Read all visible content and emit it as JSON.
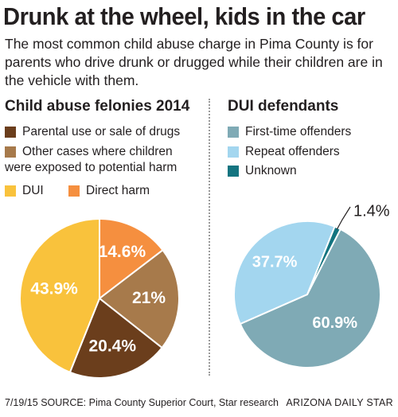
{
  "headline": "Drunk at the wheel, kids in the car",
  "subhead": "The most common child abuse charge in Pima County is for parents who drive drunk or drugged while their children are in the vehicle with them.",
  "colors": {
    "dui": "#f9c23c",
    "direct_harm": "#f58f3f",
    "parental_drugs": "#6b3e1c",
    "other_cases": "#a77a4b",
    "first_time": "#7faab5",
    "repeat": "#a3d6ef",
    "unknown": "#137480"
  },
  "chart_data": [
    {
      "type": "pie",
      "title": "Child abuse felonies 2014",
      "legend": [
        {
          "label": "Parental use or sale of drugs",
          "color": "#6b3e1c"
        },
        {
          "label": "Other cases where children were exposed to potential harm",
          "color": "#a77a4b"
        },
        {
          "label": "DUI",
          "color": "#f9c23c"
        },
        {
          "label": "Direct harm",
          "color": "#f58f3f"
        }
      ],
      "slices": [
        {
          "name": "Direct harm",
          "value": 14.6,
          "label": "14.6%",
          "color": "#f58f3f"
        },
        {
          "name": "Other cases where children were exposed to potential harm",
          "value": 21,
          "label": "21%",
          "color": "#a77a4b"
        },
        {
          "name": "Parental use or sale of drugs",
          "value": 20.4,
          "label": "20.4%",
          "color": "#6b3e1c"
        },
        {
          "name": "DUI",
          "value": 43.9,
          "label": "43.9%",
          "color": "#f9c23c"
        }
      ]
    },
    {
      "type": "pie",
      "title": "DUI defendants",
      "legend": [
        {
          "label": "First-time offenders",
          "color": "#7faab5"
        },
        {
          "label": "Repeat offenders",
          "color": "#a3d6ef"
        },
        {
          "label": "Unknown",
          "color": "#137480"
        }
      ],
      "slices": [
        {
          "name": "Unknown",
          "value": 1.4,
          "label": "1.4%",
          "color": "#137480"
        },
        {
          "name": "First-time offenders",
          "value": 60.9,
          "label": "60.9%",
          "color": "#7faab5"
        },
        {
          "name": "Repeat offenders",
          "value": 37.7,
          "label": "37.7%",
          "color": "#a3d6ef"
        }
      ]
    }
  ],
  "footer": {
    "date": "7/19/15",
    "source": "SOURCE: Pima County Superior Court, Star research",
    "credit": "ARIZONA DAILY STAR"
  }
}
